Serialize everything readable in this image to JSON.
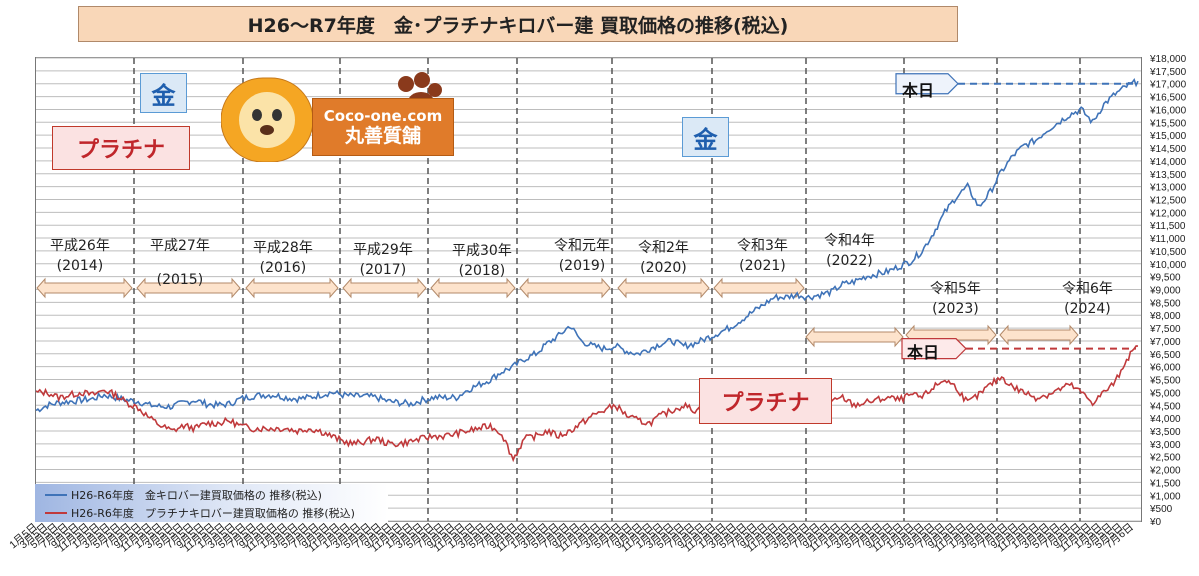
{
  "title": "H26～R7年度　金･プラチナキロバー建 買取価格の推移(税込)",
  "labels": {
    "gold_1": "金",
    "gold_2": "金",
    "plat_1": "プラチナ",
    "plat_2": "プラチナ",
    "today_gold": "本日",
    "today_plat": "本日"
  },
  "logo": {
    "url": "Coco-one.com",
    "name": "丸善質舗",
    "badge": "Coco-One"
  },
  "eras": [
    {
      "name": "平成26年",
      "year": "(2014)"
    },
    {
      "name": "平成27年",
      "year": "(2015)"
    },
    {
      "name": "平成28年",
      "year": "(2016)"
    },
    {
      "name": "平成29年",
      "year": "(2017)"
    },
    {
      "name": "平成30年",
      "year": "(2018)"
    },
    {
      "name": "令和元年",
      "year": "(2019)"
    },
    {
      "name": "令和2年",
      "year": "(2020)"
    },
    {
      "name": "令和3年",
      "year": "(2021)"
    },
    {
      "name": "令和4年",
      "year": "(2022)"
    },
    {
      "name": "令和5年",
      "year": "(2023)"
    },
    {
      "name": "令和6年",
      "year": "(2024)"
    }
  ],
  "legend": {
    "gold": "H26-R6年度　金キロバー建買取価格の 推移(税込)",
    "platinum": "H26-R6年度　プラチナキロバー建買取価格の 推移(税込)"
  },
  "colors": {
    "gold": "#3f73b8",
    "platinum": "#c0393b",
    "arrow_fill": "#fde3cc",
    "arrow_stroke": "#b38a6a"
  },
  "chart_data": {
    "type": "line",
    "ylim": [
      0,
      18000
    ],
    "y_tick_step": 500,
    "y_tick_labels": [
      "¥0",
      "¥500",
      "¥1,000",
      "¥1,500",
      "¥2,000",
      "¥2,500",
      "¥3,000",
      "¥3,500",
      "¥4,000",
      "¥4,500",
      "¥5,000",
      "¥5,500",
      "¥6,000",
      "¥6,500",
      "¥7,000",
      "¥7,500",
      "¥8,000",
      "¥8,500",
      "¥9,000",
      "¥9,500",
      "¥10,000",
      "¥10,500",
      "¥11,000",
      "¥11,500",
      "¥12,000",
      "¥12,500",
      "¥13,000",
      "¥13,500",
      "¥14,000",
      "¥14,500",
      "¥15,000",
      "¥15,500",
      "¥16,000",
      "¥16,500",
      "¥17,000",
      "¥17,500",
      "¥18,000"
    ],
    "x_tick_labels": [
      "1月5日",
      "3月5日",
      "5月5日",
      "7月5日",
      "9月5日",
      "11月5日",
      "1月5日",
      "3月5日",
      "5月5日",
      "7月5日",
      "9月5日",
      "11月5日",
      "1月5日",
      "3月5日",
      "5月5日",
      "7月5日",
      "9月5日",
      "11月5日",
      "1月5日",
      "3月5日",
      "5月5日",
      "7月5日",
      "9月5日",
      "11月5日",
      "1月5日",
      "3月5日",
      "5月5日",
      "7月5日",
      "9月5日",
      "11月5日",
      "1月5日",
      "3月5日",
      "5月5日",
      "7月5日",
      "9月5日",
      "11月5日",
      "1月5日",
      "3月5日",
      "5月5日",
      "7月5日",
      "9月5日",
      "11月5日",
      "1月5日",
      "3月5日",
      "5月5日",
      "7月5日",
      "9月5日",
      "11月5日",
      "1月5日",
      "3月5日",
      "5月5日",
      "7月5日",
      "9月5日",
      "11月5日",
      "1月5日",
      "3月5日",
      "5月5日",
      "7月5日",
      "9月5日",
      "11月5日",
      "1月5日",
      "3月5日",
      "5月5日",
      "7月5日",
      "9月5日",
      "11月5日",
      "1月5日",
      "3月5日",
      "5月5日",
      "7月5日",
      "9月5日",
      "11月5日",
      "1月5日",
      "3月5日",
      "5月5日",
      "7月5日",
      "9月5日",
      "11月5日",
      "1月5日",
      "3月5日",
      "5月5日",
      "7月5日",
      "9月5日",
      "11月5日",
      "1月5日",
      "3月5日",
      "5月5日",
      "7月5日",
      "9月5日",
      "11月5日",
      "1月5日",
      "3月5日",
      "5月5日",
      "7月5日",
      "9月5日",
      "11月5日",
      "1月5日",
      "3月5日",
      "5月5日",
      "7月5日",
      "9月5日",
      "11月5日",
      "1月5日",
      "3月5日",
      "5月5日",
      "7月6日"
    ],
    "series": [
      {
        "name": "H26-R6年度　金キロバー建買取価格の 推移(税込)",
        "values": [
          4300,
          4500,
          4600,
          4650,
          4700,
          4750,
          4900,
          4800,
          4700,
          4650,
          4500,
          4450,
          4450,
          4600,
          4700,
          4550,
          4500,
          4550,
          4750,
          4850,
          4900,
          4900,
          4800,
          4750,
          4800,
          4900,
          5000,
          4900,
          4850,
          4850,
          4800,
          4650,
          4600,
          4550,
          4700,
          4800,
          4800,
          4800,
          5100,
          5300,
          5500,
          5800,
          6000,
          6300,
          6500,
          6900,
          7200,
          7600,
          7000,
          6800,
          6700,
          6800,
          6600,
          6500,
          6700,
          6900,
          7000,
          6800,
          6900,
          7100,
          7300,
          7500,
          7800,
          8100,
          8400,
          8700,
          8700,
          8800,
          8700,
          8800,
          8900,
          9200,
          9300,
          9500,
          9600,
          9700,
          9900,
          10100,
          10500,
          11200,
          12000,
          12600,
          13000,
          12200,
          12800,
          13600,
          14200,
          14600,
          14800,
          15200,
          15500,
          15800,
          16000,
          15500,
          16200,
          16600,
          16900,
          17100
        ]
      },
      {
        "name": "H26-R6年度　プラチナキロバー建買取価格の 推移(税込)",
        "values": [
          5000,
          5000,
          4800,
          4900,
          5000,
          4900,
          5100,
          4900,
          4600,
          4400,
          4000,
          3700,
          3500,
          3700,
          3600,
          3800,
          3800,
          3900,
          3700,
          3600,
          3600,
          3600,
          3600,
          3500,
          3600,
          3500,
          3300,
          3100,
          3000,
          3100,
          3200,
          3000,
          3000,
          3100,
          3200,
          3300,
          3300,
          3400,
          3500,
          3600,
          3700,
          3400,
          2400,
          3200,
          3300,
          3500,
          3300,
          3500,
          3800,
          4100,
          4300,
          4500,
          4100,
          3900,
          3800,
          4100,
          4300,
          4500,
          4300,
          4400,
          4500,
          4600,
          4400,
          4300,
          4500,
          4700,
          4600,
          4900,
          4800,
          4400,
          4600,
          4800,
          4500,
          4600,
          4700,
          4800,
          4700,
          4900,
          4800,
          5200,
          5500,
          5200,
          4600,
          4900,
          5300,
          5600,
          5200,
          5000,
          4800,
          4900,
          5100,
          5300,
          5000,
          4600,
          5000,
          5400,
          6300,
          6800
        ]
      }
    ],
    "today_markers": {
      "gold": 17000,
      "platinum": 6700
    },
    "grid": true,
    "legend_position": "bottom-left"
  }
}
